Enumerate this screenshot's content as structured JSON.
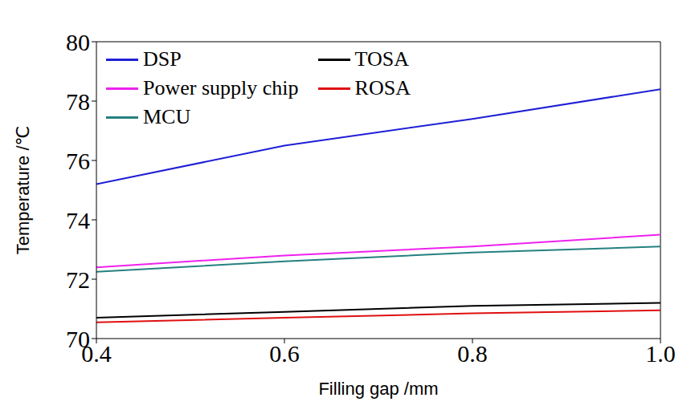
{
  "chart_data": {
    "type": "line",
    "x_label": "Filling gap /mm",
    "y_label": "Temperature /℃",
    "x": [
      0.4,
      0.6,
      0.8,
      1.0
    ],
    "xlim": [
      0.4,
      1.0
    ],
    "xticks": [
      0.4,
      0.6,
      0.8,
      {
        "value": 1.0,
        "label": "1.0"
      }
    ],
    "ylim": [
      70,
      80
    ],
    "yticks": [
      70,
      72,
      74,
      76,
      78,
      80
    ],
    "grid": false,
    "legend": "upper left",
    "series": [
      {
        "name": "DSP",
        "color": "#1f1fd6",
        "values": [
          75.2,
          76.5,
          77.4,
          78.4
        ]
      },
      {
        "name": "TOSA",
        "color": "#000000",
        "values": [
          70.7,
          70.9,
          71.1,
          71.2
        ]
      },
      {
        "name": "Power supply chip",
        "color": "#ee22ee",
        "values": [
          72.4,
          72.8,
          73.1,
          73.5
        ]
      },
      {
        "name": "ROSA",
        "color": "#e01010",
        "values": [
          70.55,
          70.7,
          70.85,
          70.95
        ]
      },
      {
        "name": "MCU",
        "color": "#268080",
        "values": [
          72.25,
          72.6,
          72.9,
          73.1
        ]
      }
    ]
  }
}
